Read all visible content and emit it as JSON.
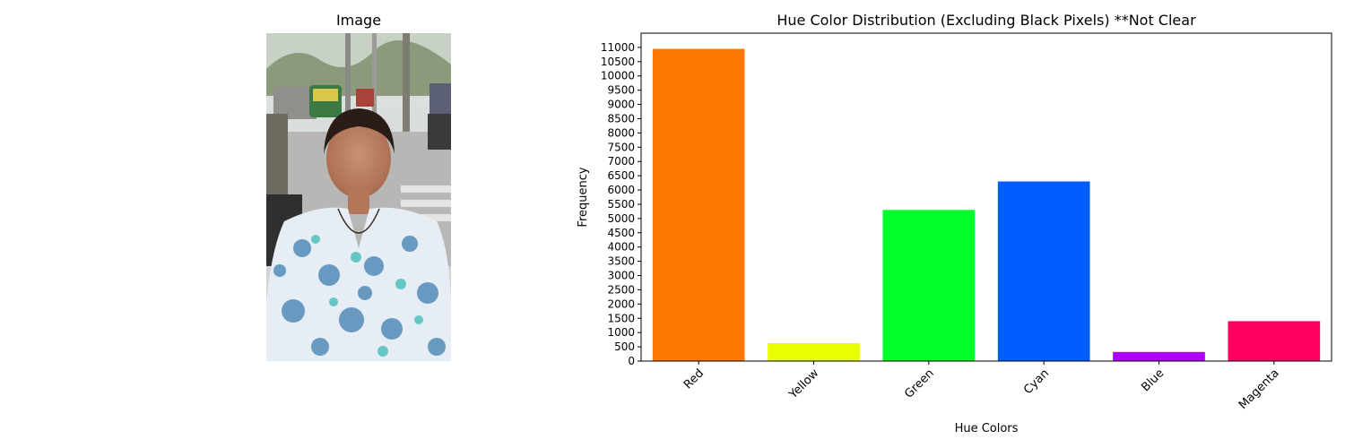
{
  "left_panel": {
    "title": "Image"
  },
  "chart_data": {
    "type": "bar",
    "title": "Hue Color Distribution (Excluding Black Pixels) **Not Clear",
    "xlabel": "Hue Colors",
    "ylabel": "Frequency",
    "categories": [
      "Red",
      "Yellow",
      "Green",
      "Cyan",
      "Blue",
      "Magenta"
    ],
    "values": [
      10950,
      630,
      5300,
      6300,
      320,
      1400
    ],
    "colors": [
      "#ff7800",
      "#e8ff00",
      "#00ff28",
      "#005eff",
      "#b000ff",
      "#ff0060"
    ],
    "ylim": [
      0,
      11500
    ],
    "yticks": [
      0,
      500,
      1000,
      1500,
      2000,
      2500,
      3000,
      3500,
      4000,
      4500,
      5000,
      5500,
      6000,
      6500,
      7000,
      7500,
      8000,
      8500,
      9000,
      9500,
      10000,
      10500,
      11000
    ],
    "grid": false,
    "legend": false,
    "xtick_rotation": 45
  }
}
